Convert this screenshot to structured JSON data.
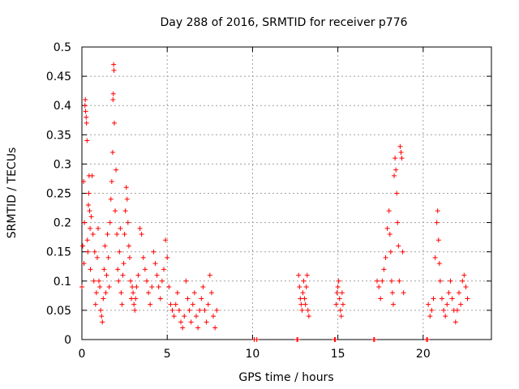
{
  "chart_data": {
    "type": "scatter",
    "title": "Day 288 of 2016, SRMTID for receiver p776",
    "xlabel": "GPS time / hours",
    "ylabel": "SRMTID / TECUs",
    "xlim": [
      0,
      24
    ],
    "ylim": [
      0,
      0.5
    ],
    "xticks": [
      0,
      5,
      10,
      15,
      20
    ],
    "xtick_labels": [
      "0",
      "5",
      "10",
      "15",
      "20"
    ],
    "yticks": [
      0,
      0.05,
      0.1,
      0.15,
      0.2,
      0.25,
      0.3,
      0.35,
      0.4,
      0.45,
      0.5
    ],
    "ytick_labels": [
      "0",
      "0.05",
      "0.1",
      "0.15",
      "0.2",
      "0.25",
      "0.3",
      "0.35",
      "0.4",
      "0.45",
      "0.5"
    ],
    "grid": true,
    "marker": "+",
    "color": "#ff0000",
    "series": [
      {
        "name": "SRMTID",
        "points": [
          [
            0.0,
            0.09
          ],
          [
            0.05,
            0.16
          ],
          [
            0.1,
            0.27
          ],
          [
            0.12,
            0.13
          ],
          [
            0.15,
            0.2
          ],
          [
            0.18,
            0.4
          ],
          [
            0.2,
            0.41
          ],
          [
            0.22,
            0.39
          ],
          [
            0.25,
            0.38
          ],
          [
            0.27,
            0.37
          ],
          [
            0.3,
            0.34
          ],
          [
            0.32,
            0.17
          ],
          [
            0.35,
            0.15
          ],
          [
            0.38,
            0.23
          ],
          [
            0.4,
            0.25
          ],
          [
            0.42,
            0.28
          ],
          [
            0.45,
            0.22
          ],
          [
            0.48,
            0.19
          ],
          [
            0.5,
            0.12
          ],
          [
            0.55,
            0.21
          ],
          [
            0.6,
            0.28
          ],
          [
            0.65,
            0.18
          ],
          [
            0.7,
            0.1
          ],
          [
            0.75,
            0.15
          ],
          [
            0.8,
            0.06
          ],
          [
            0.85,
            0.08
          ],
          [
            0.9,
            0.14
          ],
          [
            0.95,
            0.19
          ],
          [
            1.0,
            0.1
          ],
          [
            1.05,
            0.09
          ],
          [
            1.1,
            0.05
          ],
          [
            1.15,
            0.04
          ],
          [
            1.2,
            0.03
          ],
          [
            1.25,
            0.07
          ],
          [
            1.3,
            0.12
          ],
          [
            1.35,
            0.16
          ],
          [
            1.4,
            0.08
          ],
          [
            1.45,
            0.11
          ],
          [
            1.5,
            0.18
          ],
          [
            1.55,
            0.14
          ],
          [
            1.6,
            0.09
          ],
          [
            1.65,
            0.2
          ],
          [
            1.7,
            0.24
          ],
          [
            1.75,
            0.27
          ],
          [
            1.8,
            0.32
          ],
          [
            1.82,
            0.41
          ],
          [
            1.84,
            0.42
          ],
          [
            1.86,
            0.47
          ],
          [
            1.88,
            0.46
          ],
          [
            1.9,
            0.37
          ],
          [
            1.95,
            0.22
          ],
          [
            2.0,
            0.29
          ],
          [
            2.05,
            0.18
          ],
          [
            2.1,
            0.12
          ],
          [
            2.15,
            0.1
          ],
          [
            2.2,
            0.15
          ],
          [
            2.25,
            0.19
          ],
          [
            2.3,
            0.08
          ],
          [
            2.35,
            0.06
          ],
          [
            2.4,
            0.11
          ],
          [
            2.45,
            0.13
          ],
          [
            2.5,
            0.18
          ],
          [
            2.55,
            0.22
          ],
          [
            2.6,
            0.26
          ],
          [
            2.65,
            0.24
          ],
          [
            2.7,
            0.2
          ],
          [
            2.75,
            0.16
          ],
          [
            2.8,
            0.14
          ],
          [
            2.85,
            0.1
          ],
          [
            2.9,
            0.07
          ],
          [
            2.95,
            0.09
          ],
          [
            3.0,
            0.08
          ],
          [
            3.05,
            0.06
          ],
          [
            3.1,
            0.05
          ],
          [
            3.15,
            0.07
          ],
          [
            3.2,
            0.09
          ],
          [
            3.3,
            0.11
          ],
          [
            3.4,
            0.19
          ],
          [
            3.5,
            0.18
          ],
          [
            3.6,
            0.14
          ],
          [
            3.7,
            0.12
          ],
          [
            3.8,
            0.1
          ],
          [
            3.9,
            0.08
          ],
          [
            4.0,
            0.06
          ],
          [
            4.1,
            0.09
          ],
          [
            4.2,
            0.15
          ],
          [
            4.3,
            0.13
          ],
          [
            4.4,
            0.11
          ],
          [
            4.5,
            0.09
          ],
          [
            4.6,
            0.07
          ],
          [
            4.7,
            0.1
          ],
          [
            4.8,
            0.12
          ],
          [
            4.9,
            0.17
          ],
          [
            5.0,
            0.14
          ],
          [
            5.1,
            0.09
          ],
          [
            5.2,
            0.06
          ],
          [
            5.3,
            0.05
          ],
          [
            5.4,
            0.04
          ],
          [
            5.5,
            0.06
          ],
          [
            5.6,
            0.08
          ],
          [
            5.7,
            0.05
          ],
          [
            5.8,
            0.03
          ],
          [
            5.9,
            0.02
          ],
          [
            6.0,
            0.04
          ],
          [
            6.1,
            0.1
          ],
          [
            6.2,
            0.07
          ],
          [
            6.3,
            0.05
          ],
          [
            6.4,
            0.03
          ],
          [
            6.5,
            0.06
          ],
          [
            6.6,
            0.08
          ],
          [
            6.7,
            0.04
          ],
          [
            6.8,
            0.02
          ],
          [
            6.9,
            0.05
          ],
          [
            7.0,
            0.07
          ],
          [
            7.1,
            0.09
          ],
          [
            7.2,
            0.05
          ],
          [
            7.3,
            0.03
          ],
          [
            7.4,
            0.06
          ],
          [
            7.5,
            0.11
          ],
          [
            7.6,
            0.08
          ],
          [
            7.7,
            0.04
          ],
          [
            7.8,
            0.02
          ],
          [
            7.9,
            0.05
          ],
          [
            10.1,
            0.0
          ],
          [
            10.25,
            0.0
          ],
          [
            12.6,
            0.0
          ],
          [
            12.65,
            0.0
          ],
          [
            12.7,
            0.11
          ],
          [
            12.75,
            0.09
          ],
          [
            12.8,
            0.07
          ],
          [
            12.85,
            0.06
          ],
          [
            12.9,
            0.05
          ],
          [
            12.95,
            0.08
          ],
          [
            13.0,
            0.1
          ],
          [
            13.05,
            0.07
          ],
          [
            13.1,
            0.06
          ],
          [
            13.15,
            0.09
          ],
          [
            13.2,
            0.11
          ],
          [
            13.25,
            0.05
          ],
          [
            13.3,
            0.04
          ],
          [
            14.8,
            0.0
          ],
          [
            14.85,
            0.0
          ],
          [
            14.9,
            0.06
          ],
          [
            14.95,
            0.08
          ],
          [
            15.0,
            0.09
          ],
          [
            15.05,
            0.1
          ],
          [
            15.1,
            0.07
          ],
          [
            15.15,
            0.05
          ],
          [
            15.2,
            0.04
          ],
          [
            15.25,
            0.08
          ],
          [
            15.3,
            0.06
          ],
          [
            17.1,
            0.0
          ],
          [
            17.15,
            0.0
          ],
          [
            17.3,
            0.1
          ],
          [
            17.4,
            0.09
          ],
          [
            17.5,
            0.07
          ],
          [
            17.6,
            0.1
          ],
          [
            17.7,
            0.12
          ],
          [
            17.8,
            0.14
          ],
          [
            17.9,
            0.19
          ],
          [
            18.0,
            0.22
          ],
          [
            18.05,
            0.18
          ],
          [
            18.1,
            0.15
          ],
          [
            18.15,
            0.1
          ],
          [
            18.2,
            0.08
          ],
          [
            18.25,
            0.06
          ],
          [
            18.3,
            0.28
          ],
          [
            18.35,
            0.31
          ],
          [
            18.4,
            0.29
          ],
          [
            18.45,
            0.25
          ],
          [
            18.5,
            0.2
          ],
          [
            18.55,
            0.16
          ],
          [
            18.6,
            0.1
          ],
          [
            18.65,
            0.33
          ],
          [
            18.7,
            0.32
          ],
          [
            18.75,
            0.31
          ],
          [
            18.8,
            0.15
          ],
          [
            18.85,
            0.08
          ],
          [
            20.2,
            0.0
          ],
          [
            20.25,
            0.0
          ],
          [
            20.3,
            0.06
          ],
          [
            20.4,
            0.04
          ],
          [
            20.5,
            0.05
          ],
          [
            20.6,
            0.07
          ],
          [
            20.7,
            0.14
          ],
          [
            20.8,
            0.2
          ],
          [
            20.85,
            0.22
          ],
          [
            20.9,
            0.17
          ],
          [
            20.95,
            0.13
          ],
          [
            21.0,
            0.1
          ],
          [
            21.1,
            0.07
          ],
          [
            21.2,
            0.05
          ],
          [
            21.3,
            0.04
          ],
          [
            21.4,
            0.06
          ],
          [
            21.5,
            0.08
          ],
          [
            21.6,
            0.1
          ],
          [
            21.7,
            0.07
          ],
          [
            21.8,
            0.05
          ],
          [
            21.9,
            0.03
          ],
          [
            22.0,
            0.05
          ],
          [
            22.1,
            0.08
          ],
          [
            22.2,
            0.06
          ],
          [
            22.3,
            0.1
          ],
          [
            22.4,
            0.11
          ],
          [
            22.5,
            0.09
          ],
          [
            22.6,
            0.07
          ]
        ]
      }
    ]
  }
}
